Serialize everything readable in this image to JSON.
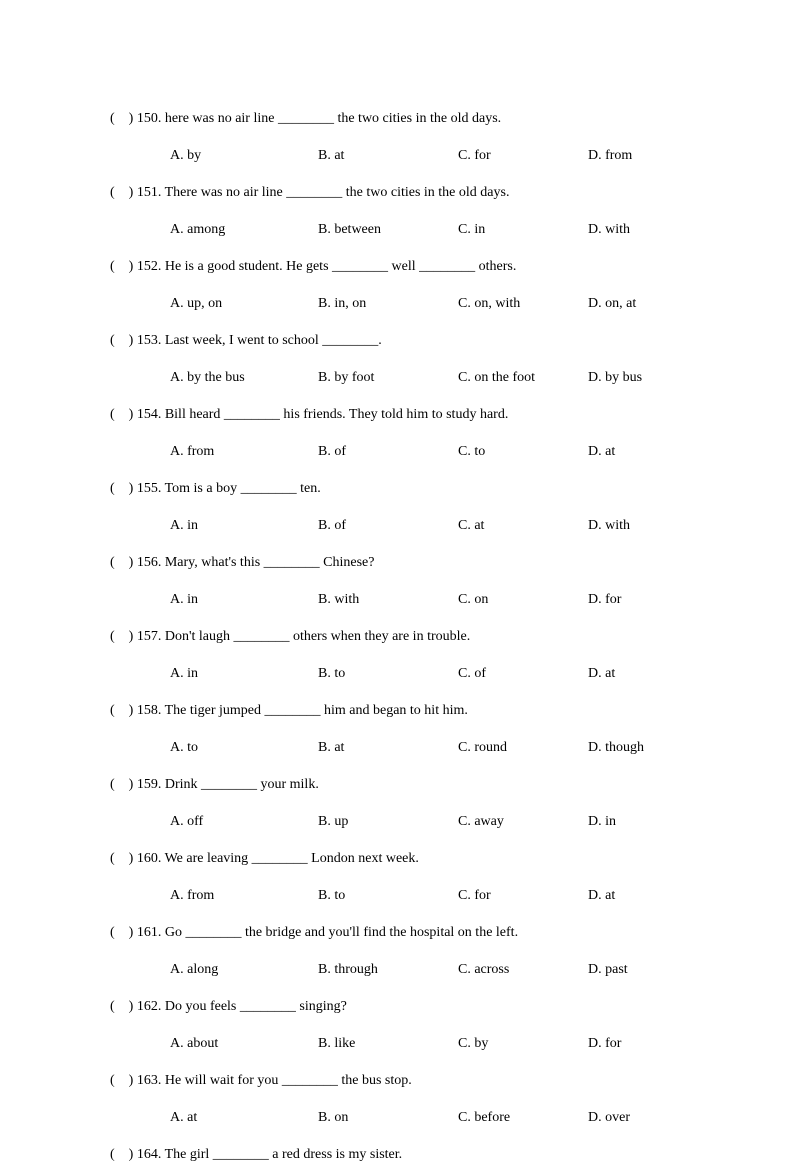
{
  "parenPrefix": "(    ) ",
  "questions": [
    {
      "num": "150",
      "text": "here was no air line ________ the two cities in the old days.",
      "a": "A. by",
      "b": "B. at",
      "c": "C. for",
      "d": "D. from"
    },
    {
      "num": "151",
      "text": "There was no air line ________ the two cities in the old days.",
      "a": "A. among",
      "b": "B. between",
      "c": "C. in",
      "d": "D. with"
    },
    {
      "num": "152",
      "text": "He is a good student. He gets ________ well ________ others.",
      "a": "A. up, on",
      "b": "B. in, on",
      "c": "C. on, with",
      "d": "D. on, at"
    },
    {
      "num": "153",
      "text": "Last week, I went to school ________.",
      "a": "A. by the bus",
      "b": "B. by foot",
      "c": "C. on the foot",
      "d": "D. by bus"
    },
    {
      "num": "154",
      "text": "Bill heard ________ his friends. They told him to study hard.",
      "a": "A. from",
      "b": "B. of",
      "c": "C. to",
      "d": "D. at"
    },
    {
      "num": "155",
      "text": "Tom is a boy ________ ten.",
      "a": "A. in",
      "b": "B. of",
      "c": "C. at",
      "d": "D. with"
    },
    {
      "num": "156",
      "text": "Mary, what's this ________ Chinese?",
      "a": "A. in",
      "b": "B. with",
      "c": "C. on",
      "d": "D. for"
    },
    {
      "num": "157",
      "text": "Don't laugh ________ others when they are in trouble.",
      "a": "A. in",
      "b": "B. to",
      "c": "C. of",
      "d": "D. at"
    },
    {
      "num": "158",
      "text": "The tiger jumped ________ him and began to hit him.",
      "a": "A. to",
      "b": "B. at",
      "c": "C. round",
      "d": "D. though"
    },
    {
      "num": "159",
      "text": "Drink ________ your milk.",
      "a": "A. off",
      "b": "B. up",
      "c": "C. away",
      "d": "D. in"
    },
    {
      "num": "160",
      "text": "We are leaving ________ London next week.",
      "a": "A. from",
      "b": "B. to",
      "c": "C. for",
      "d": "D. at"
    },
    {
      "num": "161",
      "text": "Go ________ the bridge and you'll find the hospital on the left.",
      "a": "A. along",
      "b": "B. through",
      "c": "C. across",
      "d": "D. past"
    },
    {
      "num": "162",
      "text": "Do you feels ________ singing?",
      "a": "A. about",
      "b": "B. like",
      "c": "C. by",
      "d": "D. for"
    },
    {
      "num": "163",
      "text": "He will wait for you ________ the bus stop.",
      "a": "A. at",
      "b": "B. on",
      "c": "C. before",
      "d": "D. over"
    },
    {
      "num": "164",
      "text": "The girl ________ a red dress is my sister.",
      "a": "",
      "b": "",
      "c": "",
      "d": "",
      "noOptions": true
    }
  ]
}
